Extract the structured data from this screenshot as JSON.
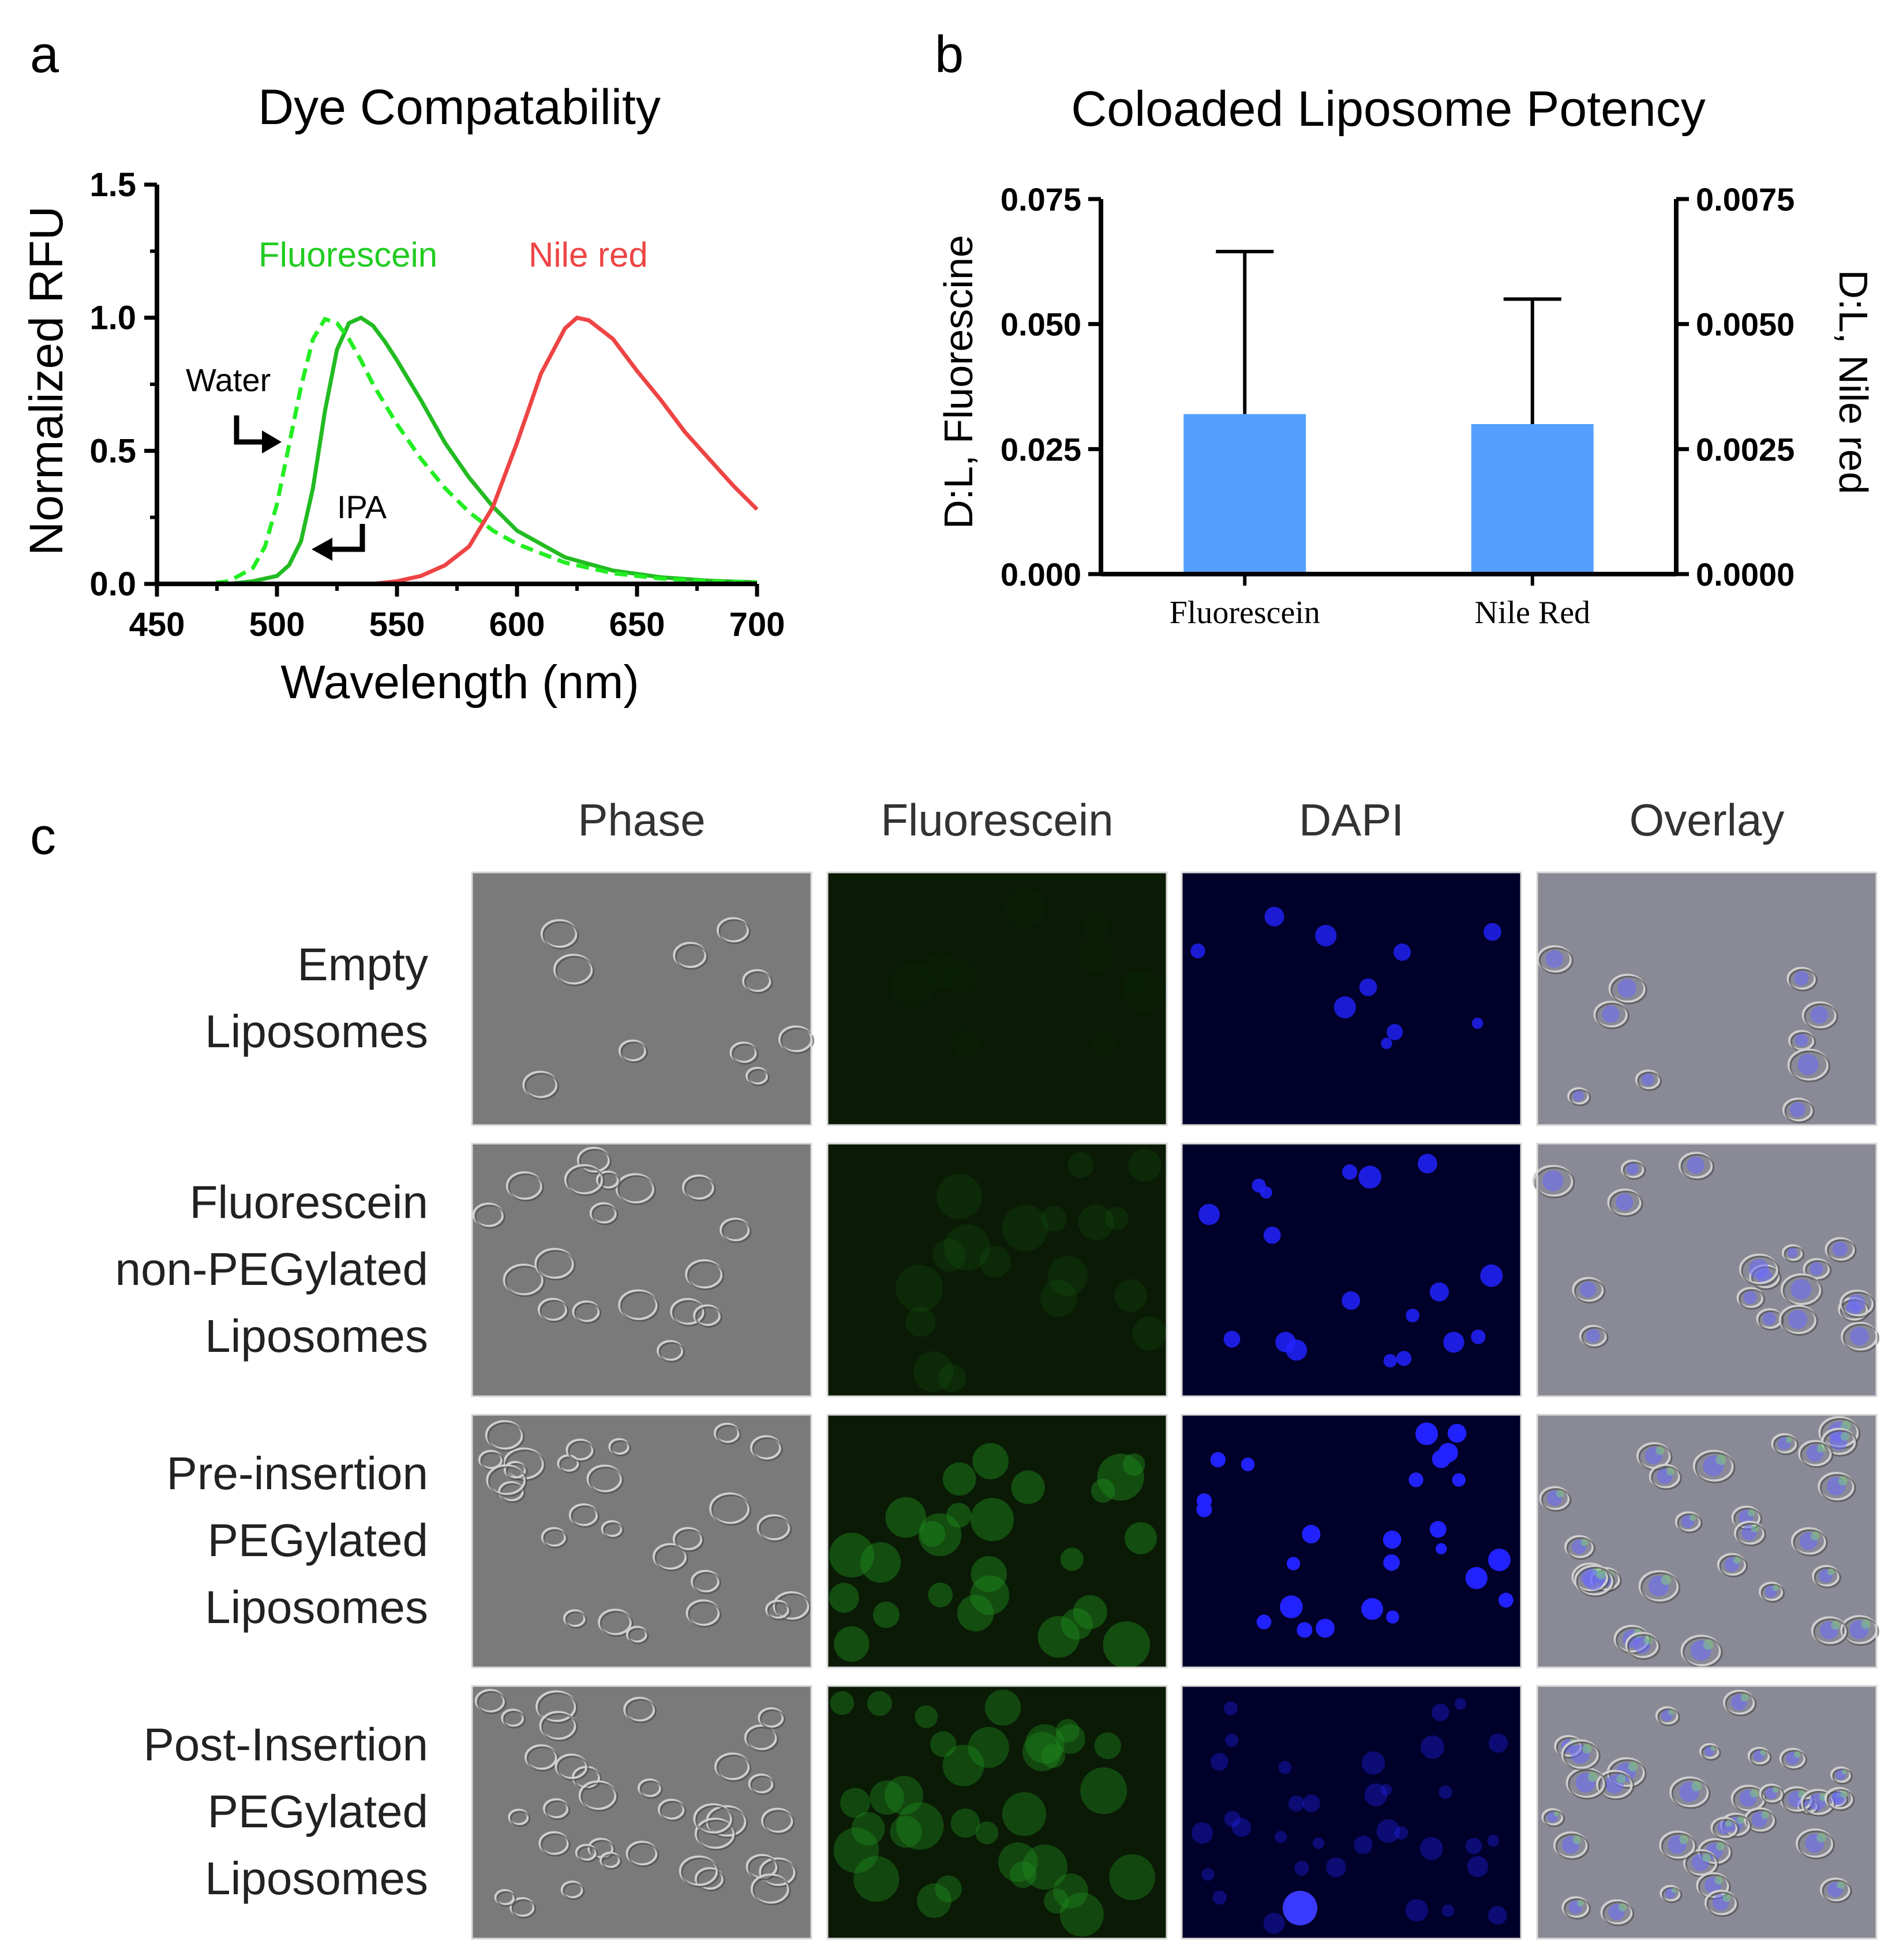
{
  "panel_a": {
    "letter": "a",
    "labels": {
      "fluorescein": "Fluorescein",
      "nile_red": "Nile red",
      "water": "Water",
      "ipa": "IPA"
    }
  },
  "panel_b": {
    "letter": "b"
  },
  "panel_c": {
    "letter": "c",
    "columns": [
      "Phase",
      "Fluorescein",
      "DAPI",
      "Overlay"
    ],
    "rows": [
      {
        "lines": [
          "Empty",
          "Liposomes"
        ]
      },
      {
        "lines": [
          "Fluorescein",
          "non-PEGylated",
          "Liposomes"
        ]
      },
      {
        "lines": [
          "Pre-insertion",
          "PEGylated",
          "Liposomes"
        ]
      },
      {
        "lines": [
          "Post-Insertion",
          "PEGylated",
          "Liposomes"
        ]
      }
    ],
    "colors": {
      "phase": "#7a7a7a",
      "fluorescein": "#0a1a05",
      "dapi": "#00002a",
      "overlay": "#8a8a96",
      "dapi_nuclei": "#2222ff",
      "fluor_cells": "#1f8a1f"
    },
    "fluorescein_intensity": [
      0.05,
      0.25,
      0.85,
      0.75
    ],
    "dapi_intensity": [
      0.8,
      0.85,
      1.0,
      0.35
    ]
  },
  "chart_data": [
    {
      "type": "line",
      "title": "Dye Compatability",
      "xlabel": "Wavelength (nm)",
      "ylabel": "Normalized RFU",
      "xlim": [
        450,
        700
      ],
      "ylim": [
        0,
        1.5
      ],
      "x_ticks": [
        "450",
        "500",
        "550",
        "600",
        "650",
        "700"
      ],
      "y_ticks": [
        "0.0",
        "0.5",
        "1.0",
        "1.5"
      ],
      "grid": false,
      "series": [
        {
          "name": "Fluorescein",
          "solvent": "IPA",
          "color": "#22bb22",
          "dash": false,
          "x": [
            450,
            480,
            490,
            500,
            505,
            510,
            515,
            520,
            525,
            530,
            535,
            540,
            545,
            550,
            560,
            570,
            580,
            590,
            600,
            620,
            640,
            660,
            680,
            700
          ],
          "y": [
            0,
            0,
            0.01,
            0.03,
            0.07,
            0.16,
            0.36,
            0.65,
            0.88,
            0.98,
            1.0,
            0.97,
            0.91,
            0.84,
            0.69,
            0.53,
            0.4,
            0.29,
            0.2,
            0.1,
            0.05,
            0.025,
            0.012,
            0.006
          ]
        },
        {
          "name": "Fluorescein",
          "solvent": "Water",
          "color": "#22ee22",
          "dash": true,
          "x": [
            450,
            470,
            480,
            490,
            495,
            500,
            505,
            510,
            515,
            520,
            525,
            530,
            535,
            540,
            550,
            560,
            570,
            580,
            590,
            600,
            620,
            640,
            660,
            680,
            700
          ],
          "y": [
            0,
            0,
            0.01,
            0.06,
            0.14,
            0.3,
            0.52,
            0.74,
            0.92,
            0.995,
            0.98,
            0.92,
            0.84,
            0.75,
            0.6,
            0.47,
            0.36,
            0.27,
            0.2,
            0.15,
            0.08,
            0.04,
            0.02,
            0.01,
            0.005
          ]
        },
        {
          "name": "Nile red",
          "color": "#ee4444",
          "dash": false,
          "x": [
            450,
            540,
            550,
            560,
            570,
            580,
            590,
            600,
            610,
            620,
            625,
            630,
            640,
            650,
            660,
            670,
            680,
            690,
            700
          ],
          "y": [
            0,
            0,
            0.01,
            0.03,
            0.07,
            0.14,
            0.29,
            0.53,
            0.79,
            0.96,
            1.0,
            0.99,
            0.92,
            0.8,
            0.69,
            0.57,
            0.47,
            0.37,
            0.28
          ]
        }
      ]
    },
    {
      "type": "bar",
      "title": "Coloaded Liposome Potency",
      "categories": [
        "Fluorescein",
        "Nile Red"
      ],
      "ylabel": "D:L, Fluorescine",
      "ylabel_right": "D:L, Nile red",
      "ylim": [
        0,
        0.075
      ],
      "ylim_right": [
        0,
        0.0075
      ],
      "y_ticks": [
        "0.000",
        "0.025",
        "0.050",
        "0.075"
      ],
      "y_ticks_right": [
        "0.0000",
        "0.0025",
        "0.0050",
        "0.0075"
      ],
      "series": [
        {
          "values": [
            0.032,
            0.003
          ],
          "axis": [
            "left",
            "right"
          ],
          "error": [
            0.0325,
            0.0025
          ],
          "color": "#55a0ff"
        }
      ],
      "grid": false
    }
  ]
}
